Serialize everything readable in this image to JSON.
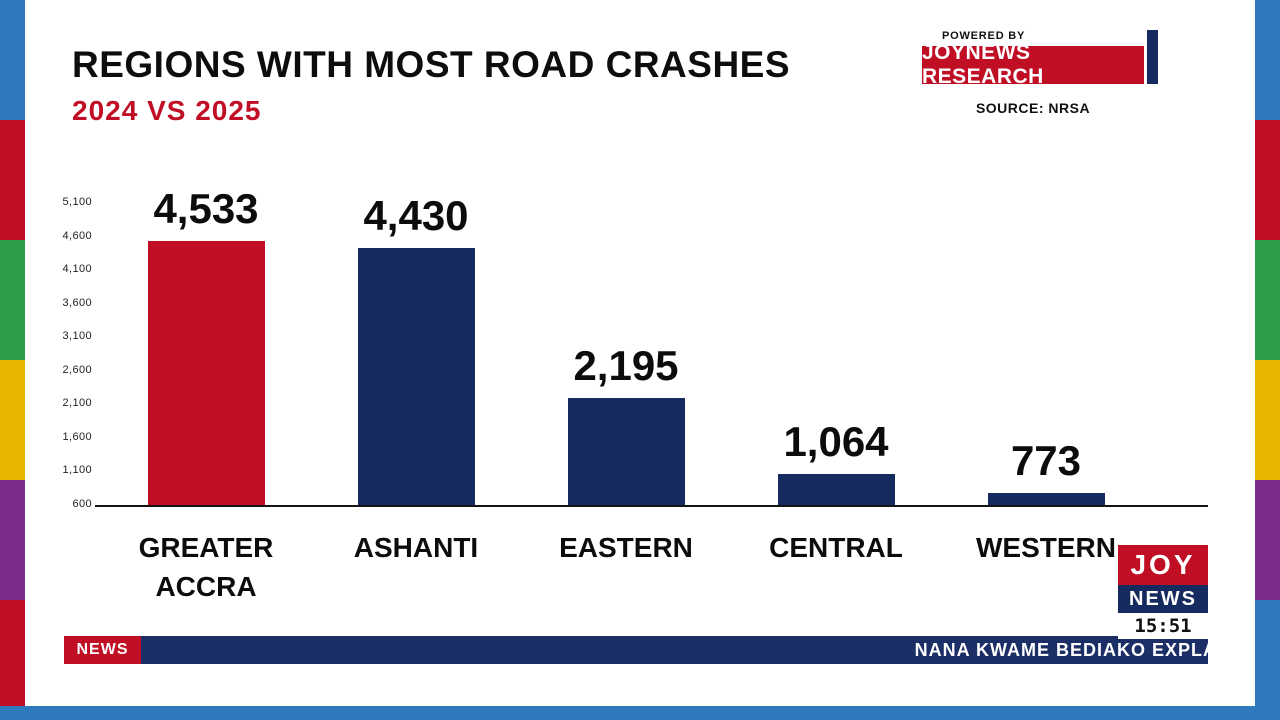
{
  "header": {
    "title": "REGIONS WITH MOST ROAD CRASHES",
    "subtitle": "2024 VS 2025",
    "powered_by": "POWERED BY",
    "research_badge": "JOYNEWS RESEARCH",
    "source": "SOURCE: NRSA"
  },
  "chart_data": {
    "type": "bar",
    "title": "REGIONS WITH MOST ROAD CRASHES",
    "subtitle": "2024 VS 2025",
    "source": "NRSA",
    "categories": [
      "GREATER ACCRA",
      "ASHANTI",
      "EASTERN",
      "CENTRAL",
      "WESTERN"
    ],
    "values": [
      4533,
      4430,
      2195,
      1064,
      773
    ],
    "value_labels": [
      "4,533",
      "4,430",
      "2,195",
      "1,064",
      "773"
    ],
    "bar_colors": [
      "#c00f25",
      "#152a5e",
      "#152a5e",
      "#152a5e",
      "#152a5e"
    ],
    "ylim": [
      600,
      5100
    ],
    "yticks": [
      5100,
      4600,
      4100,
      3600,
      3100,
      2600,
      2100,
      1600,
      1100,
      600
    ],
    "ytick_labels": [
      "5,100",
      "4,600",
      "4,100",
      "3,600",
      "3,100",
      "2,600",
      "2,100",
      "1,600",
      "1,100",
      "600"
    ],
    "grid": false,
    "legend": false
  },
  "ticker": {
    "label": "NEWS",
    "text": "NANA KWAME BEDIAKO EXPLA"
  },
  "logo": {
    "joy": "JOY",
    "news": "NEWS",
    "time": "15:51"
  },
  "colors": {
    "red": "#c00f25",
    "navy": "#152a5e",
    "ticker_navy": "#1b2f66",
    "bottom_blue": "#2e7abc"
  },
  "stripes": {
    "left": [
      "#2e7abc",
      "#c00f25",
      "#2e9e49",
      "#e9b400",
      "#7b2d8b",
      "#c00f25"
    ],
    "right": [
      "#2e7abc",
      "#c00f25",
      "#2e9e49",
      "#e9b400",
      "#7b2d8b",
      "#2e7abc"
    ]
  }
}
